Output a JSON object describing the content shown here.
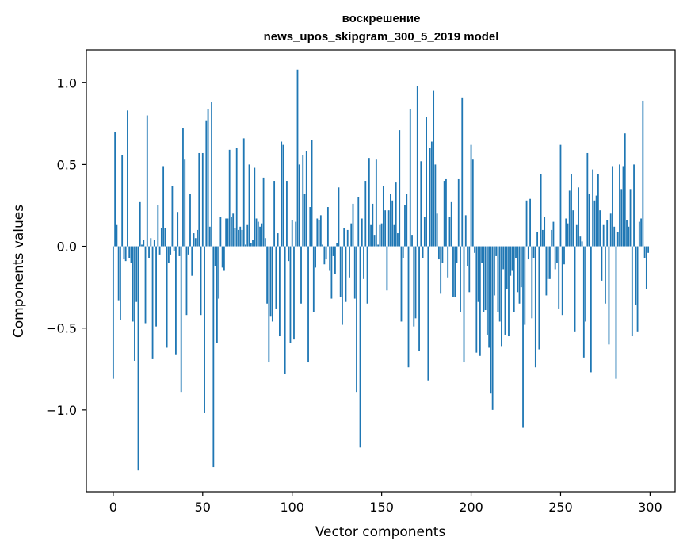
{
  "chart_data": {
    "type": "bar",
    "title_line1": "воскрешение",
    "title_line2": "news_upos_skipgram_300_5_2019 model",
    "xlabel": "Vector components",
    "ylabel": "Components values",
    "xlim": [
      -15,
      314
    ],
    "ylim": [
      -1.5,
      1.2
    ],
    "xticks": [
      0,
      50,
      100,
      150,
      200,
      250,
      300
    ],
    "xtick_labels": [
      "0",
      "50",
      "100",
      "150",
      "200",
      "250",
      "300"
    ],
    "yticks": [
      1.0,
      0.5,
      0.0,
      -0.5,
      -1.0
    ],
    "ytick_labels": [
      "1.0",
      "0.5",
      "0.0",
      "−0.5",
      "−1.0"
    ],
    "bar_color": "#1f77b4",
    "values": [
      -0.81,
      0.7,
      0.13,
      -0.33,
      -0.45,
      0.56,
      -0.08,
      -0.09,
      0.83,
      -0.07,
      -0.1,
      -0.46,
      -0.7,
      -0.34,
      -1.37,
      0.27,
      0.01,
      0.04,
      -0.47,
      0.8,
      -0.07,
      0.05,
      -0.69,
      0.04,
      -0.49,
      0.25,
      -0.05,
      0.11,
      0.49,
      0.11,
      -0.62,
      -0.1,
      -0.05,
      0.37,
      -0.03,
      -0.66,
      0.21,
      -0.06,
      -0.89,
      0.72,
      0.53,
      -0.42,
      -0.05,
      0.32,
      -0.18,
      0.08,
      0.05,
      0.1,
      0.57,
      -0.42,
      0.57,
      -1.02,
      0.77,
      0.84,
      0.12,
      0.88,
      -1.35,
      -0.12,
      -0.59,
      -0.32,
      0.18,
      -0.13,
      -0.15,
      0.17,
      0.17,
      0.59,
      0.18,
      0.2,
      0.11,
      0.6,
      0.1,
      0.12,
      0.1,
      0.66,
      0.01,
      0.13,
      0.5,
      0.02,
      0.04,
      0.48,
      0.17,
      0.15,
      0.12,
      0.14,
      0.42,
      0.05,
      -0.35,
      -0.71,
      -0.43,
      -0.46,
      0.4,
      -0.38,
      0.08,
      -0.55,
      0.64,
      0.62,
      -0.78,
      0.4,
      -0.09,
      -0.59,
      0.16,
      -0.57,
      0.15,
      1.08,
      0.5,
      -0.35,
      0.56,
      0.32,
      0.58,
      -0.71,
      0.24,
      0.65,
      -0.4,
      -0.13,
      0.17,
      0.16,
      0.19,
      0.01,
      -0.11,
      -0.08,
      0.24,
      -0.15,
      -0.32,
      -0.06,
      -0.17,
      0.02,
      0.36,
      -0.31,
      -0.48,
      0.11,
      -0.34,
      0.1,
      -0.19,
      0.14,
      0.26,
      -0.32,
      -0.89,
      0.3,
      -1.23,
      0.17,
      -0.2,
      0.4,
      -0.35,
      0.54,
      0.13,
      0.26,
      0.07,
      0.53,
      0.01,
      0.13,
      0.14,
      0.37,
      0.22,
      -0.27,
      0.22,
      0.32,
      0.28,
      0.13,
      0.39,
      0.08,
      0.71,
      -0.46,
      -0.07,
      0.25,
      0.32,
      -0.74,
      0.84,
      0.07,
      -0.49,
      -0.44,
      0.98,
      -0.64,
      0.52,
      -0.07,
      0.18,
      0.79,
      -0.82,
      0.6,
      0.64,
      0.95,
      0.5,
      0.2,
      -0.08,
      -0.29,
      -0.1,
      0.4,
      0.41,
      -0.19,
      0.18,
      0.27,
      -0.31,
      -0.31,
      -0.1,
      0.41,
      -0.4,
      0.91,
      -0.71,
      0.19,
      -0.12,
      -0.28,
      0.62,
      0.53,
      -0.04,
      -0.65,
      -0.34,
      -0.67,
      -0.1,
      -0.4,
      -0.39,
      -0.54,
      -0.62,
      -0.9,
      -1.0,
      -0.3,
      -0.06,
      -0.4,
      -0.46,
      -0.61,
      -0.14,
      -0.54,
      -0.26,
      -0.55,
      -0.18,
      -0.15,
      -0.4,
      -0.07,
      -0.28,
      -0.35,
      -0.25,
      -1.11,
      -0.48,
      0.28,
      -0.08,
      0.29,
      -0.44,
      -0.07,
      -0.74,
      0.09,
      -0.63,
      0.44,
      0.1,
      0.18,
      -0.3,
      -0.2,
      -0.2,
      0.1,
      0.15,
      -0.14,
      -0.1,
      -0.38,
      0.62,
      -0.42,
      -0.11,
      0.17,
      0.14,
      0.34,
      0.44,
      0.22,
      -0.52,
      0.13,
      0.36,
      0.06,
      0.03,
      -0.68,
      -0.46,
      0.57,
      0.32,
      -0.77,
      0.47,
      0.28,
      0.31,
      0.44,
      0.22,
      -0.21,
      0.13,
      -0.35,
      0.16,
      -0.6,
      0.2,
      0.49,
      0.12,
      -0.81,
      0.09,
      0.5,
      0.35,
      0.49,
      0.69,
      0.16,
      0.12,
      0.35,
      -0.55,
      0.5,
      -0.36,
      -0.52,
      0.15,
      0.17,
      0.89,
      -0.07,
      -0.26,
      -0.04
    ]
  }
}
